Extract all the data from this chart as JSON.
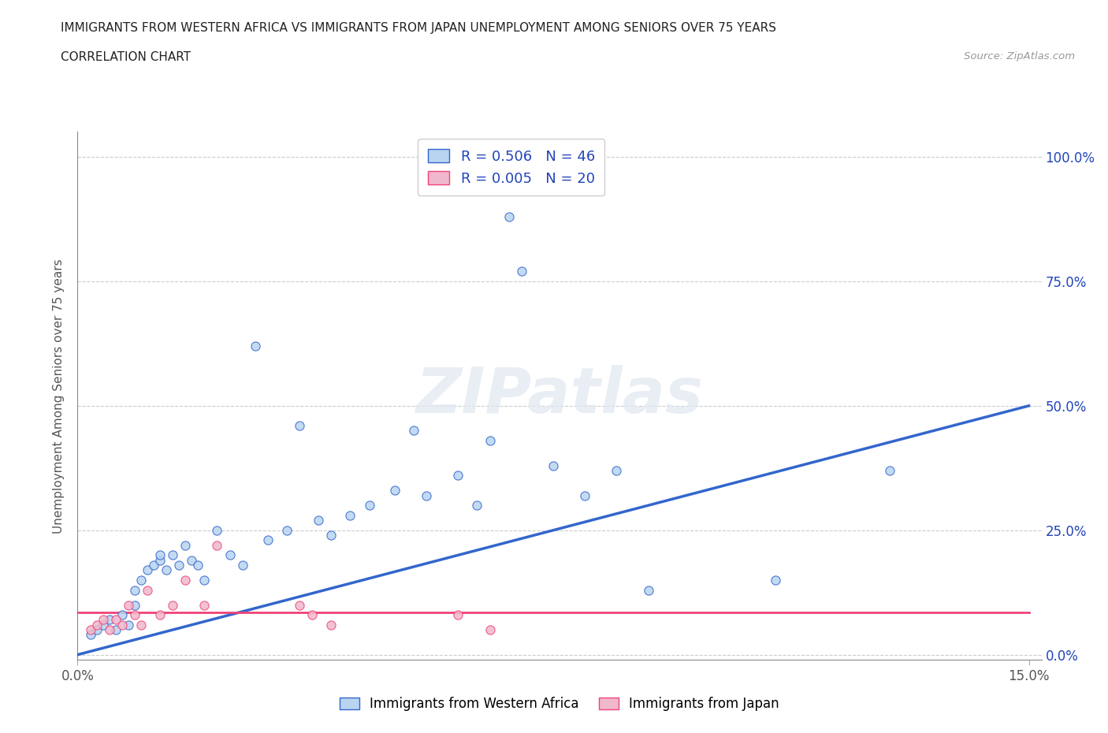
{
  "title_line1": "IMMIGRANTS FROM WESTERN AFRICA VS IMMIGRANTS FROM JAPAN UNEMPLOYMENT AMONG SENIORS OVER 75 YEARS",
  "title_line2": "CORRELATION CHART",
  "source": "Source: ZipAtlas.com",
  "ylabel": "Unemployment Among Seniors over 75 years",
  "watermark": "ZIPatlas",
  "legend_r1": "R = 0.506   N = 46",
  "legend_r2": "R = 0.005   N = 20",
  "color_blue": "#b8d4f0",
  "color_pink": "#f0b8cc",
  "line_blue": "#3366cc",
  "line_pink": "#ee4477",
  "blue_scatter_x": [
    0.002,
    0.003,
    0.004,
    0.005,
    0.006,
    0.007,
    0.008,
    0.009,
    0.009,
    0.01,
    0.011,
    0.012,
    0.013,
    0.013,
    0.014,
    0.015,
    0.016,
    0.017,
    0.018,
    0.019,
    0.02,
    0.022,
    0.024,
    0.026,
    0.028,
    0.03,
    0.033,
    0.035,
    0.038,
    0.04,
    0.043,
    0.046,
    0.05,
    0.053,
    0.055,
    0.06,
    0.063,
    0.065,
    0.068,
    0.07,
    0.075,
    0.08,
    0.085,
    0.09,
    0.11,
    0.128
  ],
  "blue_scatter_y": [
    0.04,
    0.05,
    0.06,
    0.07,
    0.05,
    0.08,
    0.06,
    0.1,
    0.13,
    0.15,
    0.17,
    0.18,
    0.19,
    0.2,
    0.17,
    0.2,
    0.18,
    0.22,
    0.19,
    0.18,
    0.15,
    0.25,
    0.2,
    0.18,
    0.62,
    0.23,
    0.25,
    0.46,
    0.27,
    0.24,
    0.28,
    0.3,
    0.33,
    0.45,
    0.32,
    0.36,
    0.3,
    0.43,
    0.88,
    0.77,
    0.38,
    0.32,
    0.37,
    0.13,
    0.15,
    0.37
  ],
  "pink_scatter_x": [
    0.002,
    0.003,
    0.004,
    0.005,
    0.006,
    0.007,
    0.008,
    0.009,
    0.01,
    0.011,
    0.013,
    0.015,
    0.017,
    0.02,
    0.022,
    0.035,
    0.037,
    0.04,
    0.06,
    0.065
  ],
  "pink_scatter_y": [
    0.05,
    0.06,
    0.07,
    0.05,
    0.07,
    0.06,
    0.1,
    0.08,
    0.06,
    0.13,
    0.08,
    0.1,
    0.15,
    0.1,
    0.22,
    0.1,
    0.08,
    0.06,
    0.08,
    0.05
  ],
  "blue_trend_x": [
    0.0,
    0.15
  ],
  "blue_trend_y": [
    0.0,
    0.5
  ],
  "pink_trend_x": [
    0.0,
    0.15
  ],
  "pink_trend_y": [
    0.085,
    0.085
  ],
  "xlim": [
    0.0,
    0.152
  ],
  "ylim": [
    -0.01,
    1.05
  ],
  "ytick_vals": [
    0.0,
    0.25,
    0.5,
    0.75,
    1.0
  ],
  "ytick_labels_right": [
    "0.0%",
    "25.0%",
    "50.0%",
    "75.0%",
    "100.0%"
  ],
  "xtick_vals": [
    0.0,
    0.15
  ],
  "xtick_labels": [
    "0.0%",
    "15.0%"
  ],
  "legend_bottom_1": "Immigrants from Western Africa",
  "legend_bottom_2": "Immigrants from Japan"
}
